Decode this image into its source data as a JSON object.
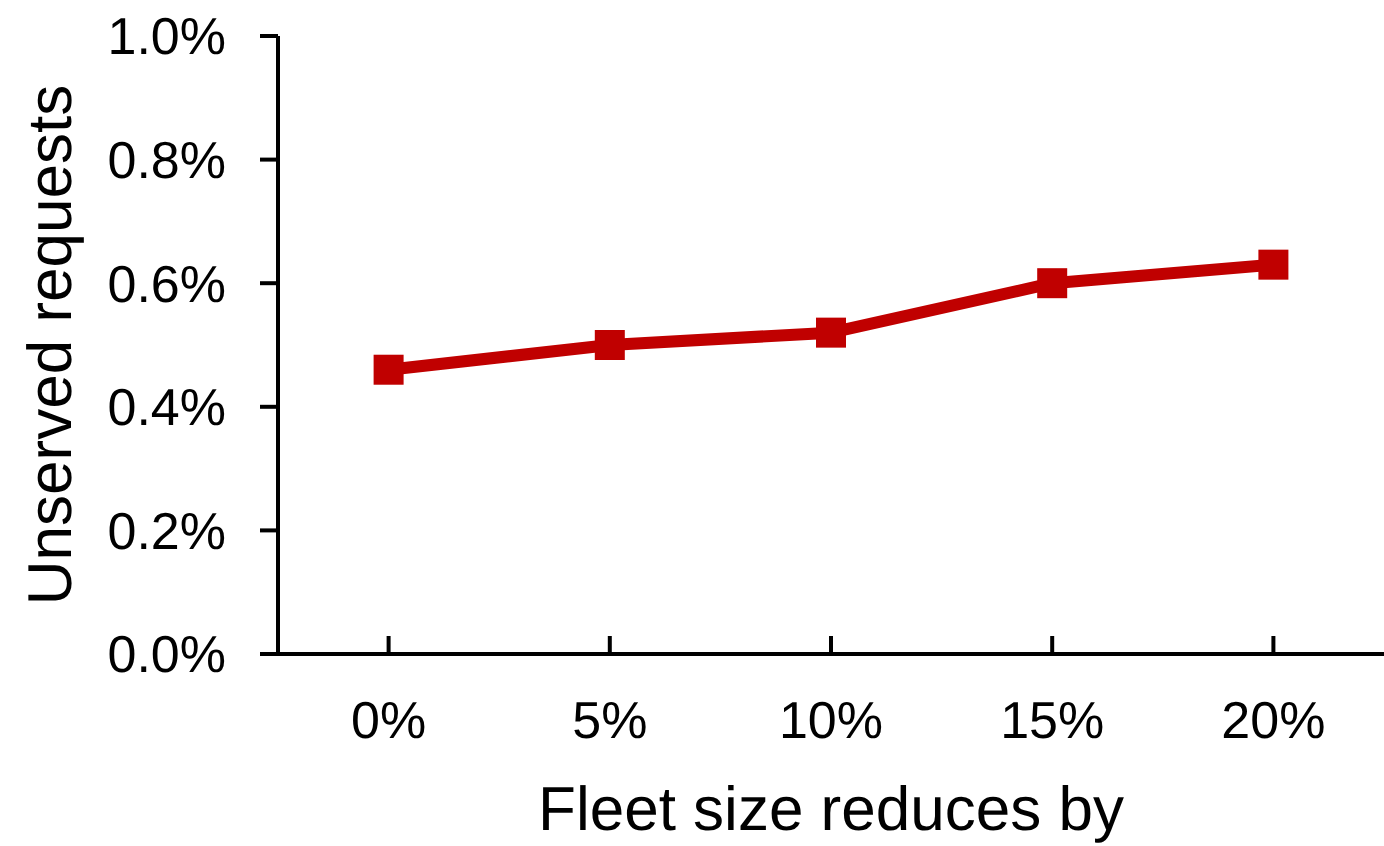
{
  "chart_data": {
    "type": "line",
    "xlabel": "Fleet size reduces by",
    "ylabel": "Unserved requests",
    "categories": [
      "0%",
      "5%",
      "10%",
      "15%",
      "20%"
    ],
    "series": [
      {
        "color": "#c00000",
        "values": [
          0.46,
          0.5,
          0.52,
          0.6,
          0.63
        ]
      }
    ],
    "ylim": [
      0,
      1
    ],
    "yticks": [
      {
        "value": 0,
        "label": "0.0%"
      },
      {
        "value": 0.2,
        "label": "0.2%"
      },
      {
        "value": 0.4,
        "label": "0.4%"
      },
      {
        "value": 0.6,
        "label": "0.6%"
      },
      {
        "value": 0.8,
        "label": "0.8%"
      },
      {
        "value": 1,
        "label": "1.0%"
      }
    ],
    "marker": "square",
    "line_style": "solid"
  }
}
